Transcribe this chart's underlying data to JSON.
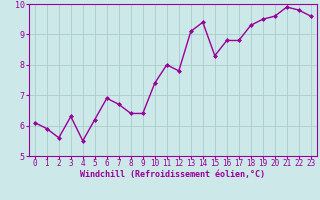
{
  "x": [
    0,
    1,
    2,
    3,
    4,
    5,
    6,
    7,
    8,
    9,
    10,
    11,
    12,
    13,
    14,
    15,
    16,
    17,
    18,
    19,
    20,
    21,
    22,
    23
  ],
  "y": [
    6.1,
    5.9,
    5.6,
    6.3,
    5.5,
    6.2,
    6.9,
    6.7,
    6.4,
    6.4,
    7.4,
    8.0,
    7.8,
    9.1,
    9.4,
    8.3,
    8.8,
    8.8,
    9.3,
    9.5,
    9.6,
    9.9,
    9.8,
    9.6
  ],
  "line_color": "#990099",
  "marker": "D",
  "marker_size": 2.0,
  "bg_color": "#cce8e8",
  "grid_color": "#aacccc",
  "xlabel": "Windchill (Refroidissement éolien,°C)",
  "xlabel_color": "#990099",
  "tick_color": "#990099",
  "ylim": [
    5,
    10
  ],
  "xlim": [
    -0.5,
    23.5
  ],
  "yticks": [
    5,
    6,
    7,
    8,
    9,
    10
  ],
  "xticks": [
    0,
    1,
    2,
    3,
    4,
    5,
    6,
    7,
    8,
    9,
    10,
    11,
    12,
    13,
    14,
    15,
    16,
    17,
    18,
    19,
    20,
    21,
    22,
    23
  ],
  "spine_color": "#990099",
  "line_width": 1.0,
  "tick_fontsize": 5.5,
  "xlabel_fontsize": 6.0
}
